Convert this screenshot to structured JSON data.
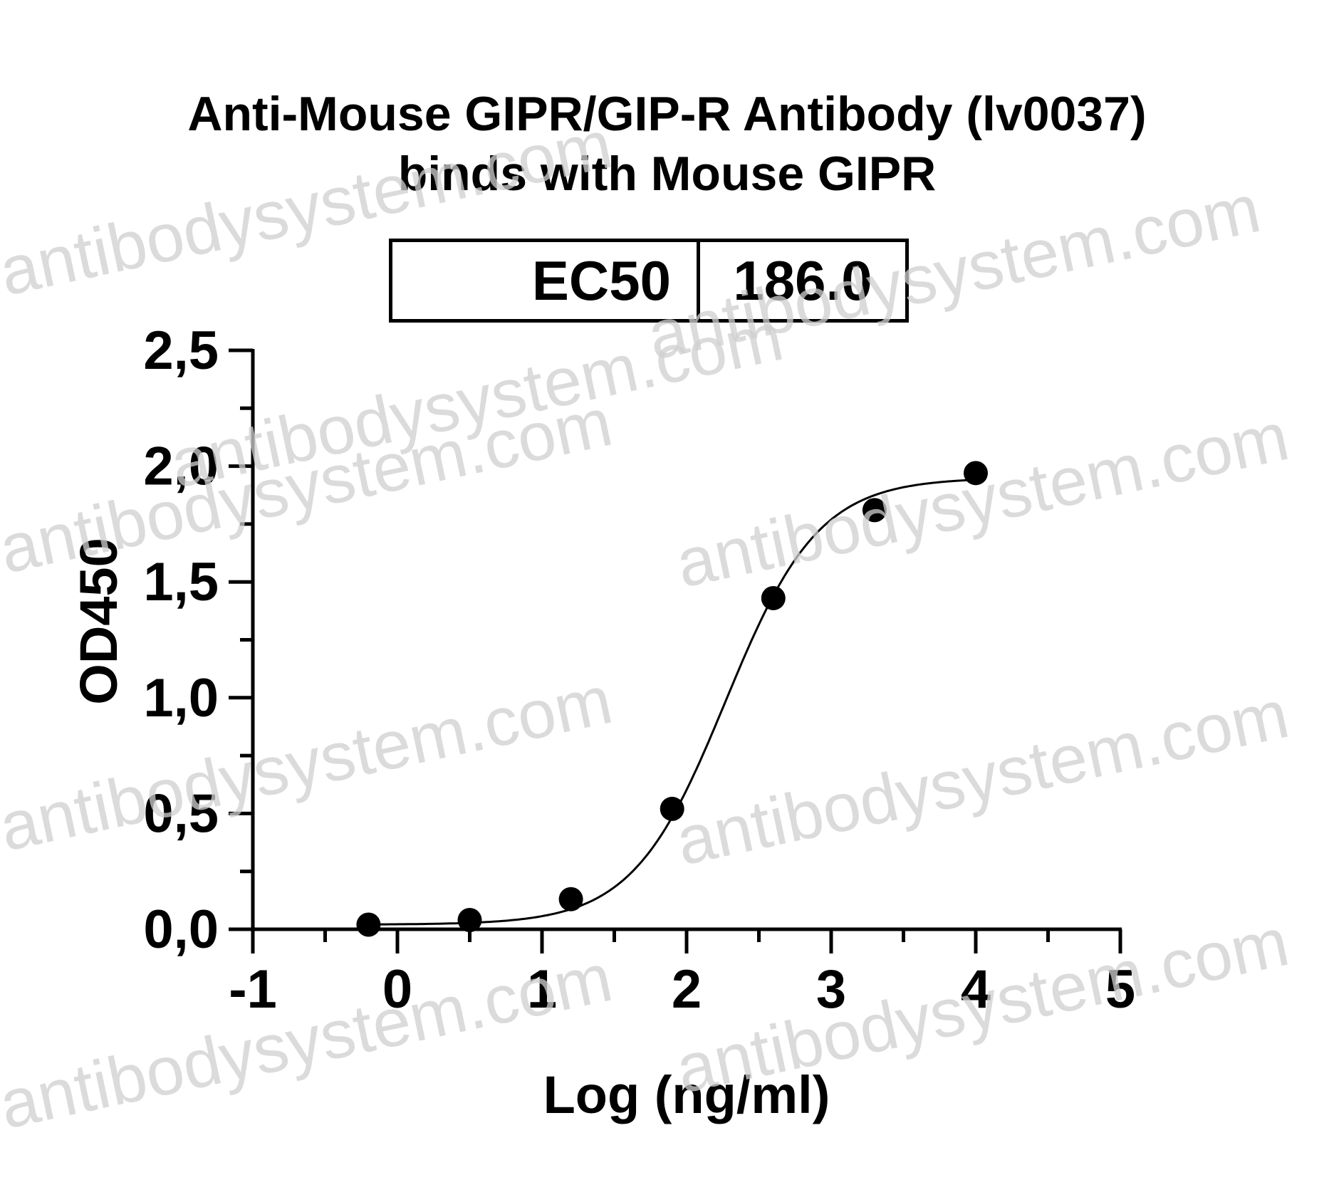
{
  "chart_data": {
    "type": "scatter",
    "title_lines": [
      "Anti-Mouse GIPR/GIP-R Antibody (lv0037)",
      "binds with Mouse GIPR"
    ],
    "xlabel": "Log (ng/ml)",
    "ylabel": "OD450",
    "xlim": [
      -1,
      5
    ],
    "ylim": [
      0,
      2.5
    ],
    "x_ticks": [
      "-1",
      "0",
      "1",
      "2",
      "3",
      "4",
      "5"
    ],
    "y_ticks": [
      "0,0",
      "0,5",
      "1,0",
      "1,5",
      "2,0",
      "2,5"
    ],
    "grid": false,
    "points": {
      "x": [
        -0.2,
        0.5,
        1.2,
        1.9,
        2.6,
        3.3,
        4.0
      ],
      "y": [
        0.02,
        0.04,
        0.13,
        0.52,
        1.43,
        1.81,
        1.97
      ]
    },
    "fit_curve": {
      "type": "four-parameter logistic",
      "bottom": 0.02,
      "top": 1.95,
      "log_ec50": 2.27,
      "hill": 1.35
    },
    "ec50_table": {
      "label": "EC50",
      "value": "186.0"
    },
    "colors": {
      "points": "#000000",
      "curve": "#000000",
      "watermark": "#cfcfcf"
    }
  },
  "watermark": {
    "text": "antibodysystem.com"
  }
}
